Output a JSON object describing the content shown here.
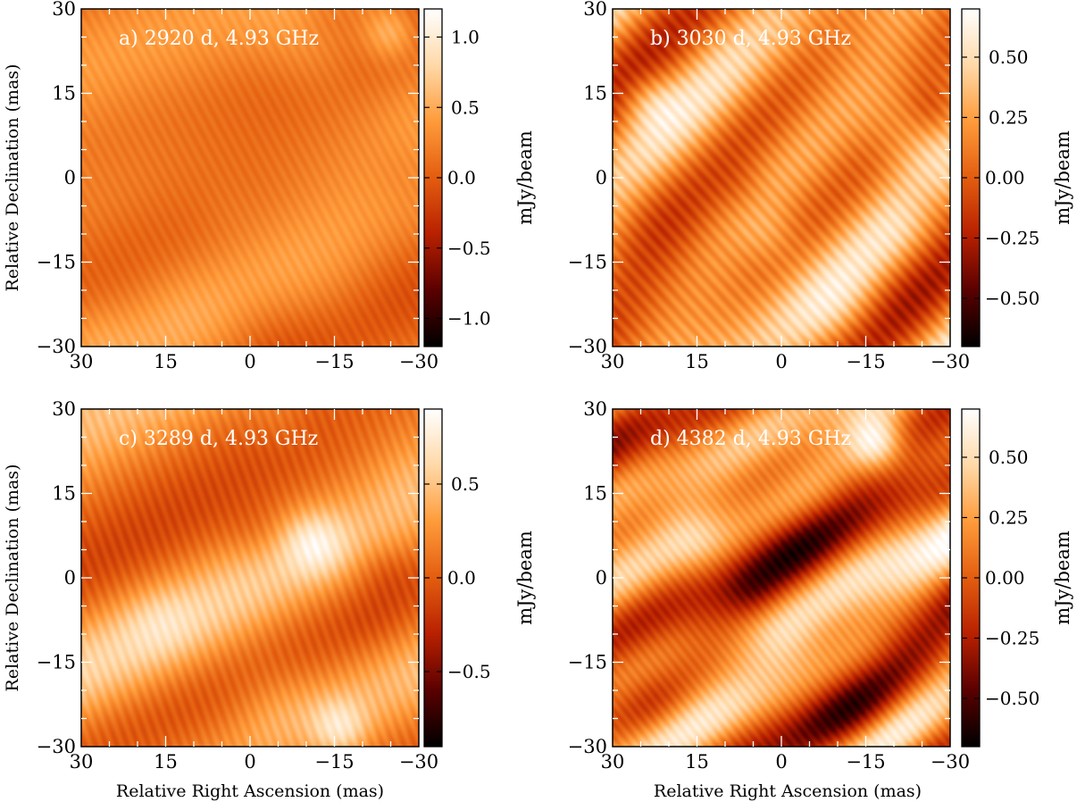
{
  "figure": {
    "xlabel": "Relative Right Ascension (mas)",
    "ylabel": "Relative Declination (mas)",
    "colorbar_label": "mJy/beam"
  },
  "colormap": {
    "name": "afmhot",
    "stops": [
      "#000000",
      "#5a0000",
      "#b82000",
      "#e35d0f",
      "#ff9b3a",
      "#ffd9a8",
      "#ffffff"
    ]
  },
  "chart_data": [
    {
      "type": "heatmap",
      "title": "a) 2920 d, 4.93 GHz",
      "xlabel": "",
      "ylabel": "Relative Declination (mas)",
      "xlim": [
        30,
        -30
      ],
      "ylim": [
        -30,
        30
      ],
      "xticks": [
        30,
        15,
        0,
        -15,
        -30
      ],
      "xtick_labels": [
        "30",
        "15",
        "0",
        "−15",
        "−30"
      ],
      "yticks": [
        30,
        15,
        0,
        -15,
        -30
      ],
      "ytick_labels": [
        "30",
        "15",
        "0",
        "−15",
        "−30"
      ],
      "colorbar": {
        "label": "mJy/beam",
        "range": [
          -1.2,
          1.2
        ],
        "ticks": [
          1.0,
          0.5,
          0.0,
          -0.5,
          -1.0
        ],
        "tick_labels": [
          "1.0",
          "0.5",
          "0.0",
          "−0.5",
          "−1.0"
        ]
      },
      "noise": {
        "seed": 11,
        "angle": 62,
        "freq": 0.18,
        "amp": 0.22,
        "mean": 0.22,
        "fringe": 1.15,
        "fringe_amp": 0.06,
        "hot": {
          "ra": -25,
          "dec": 26,
          "value": 0.55
        }
      }
    },
    {
      "type": "heatmap",
      "title": "b) 3030 d, 4.93 GHz",
      "xlabel": "",
      "ylabel": "",
      "xlim": [
        30,
        -30
      ],
      "ylim": [
        -30,
        30
      ],
      "xticks": [
        30,
        15,
        0,
        -15,
        -30
      ],
      "xtick_labels": [
        "30",
        "15",
        "0",
        "−15",
        "−30"
      ],
      "yticks": [
        30,
        15,
        0,
        -15,
        -30
      ],
      "ytick_labels": [
        "30",
        "15",
        "0",
        "−15",
        "−30"
      ],
      "colorbar": {
        "label": "mJy/beam",
        "range": [
          -0.7,
          0.7
        ],
        "ticks": [
          0.5,
          0.25,
          0.0,
          -0.25,
          -0.5
        ],
        "tick_labels": [
          "0.50",
          "0.25",
          "0.00",
          "−0.25",
          "−0.50"
        ]
      },
      "noise": {
        "seed": 23,
        "angle": 48,
        "freq": 0.22,
        "amp": 0.28,
        "mean": 0.18,
        "fringe": 1.0,
        "fringe_amp": 0.07,
        "hot": {
          "ra": 24,
          "dec": 14,
          "value": 0.25
        }
      }
    },
    {
      "type": "heatmap",
      "title": "c) 3289 d, 4.93 GHz",
      "xlabel": "",
      "ylabel": "Relative Declination (mas)",
      "xlim": [
        30,
        -30
      ],
      "ylim": [
        -30,
        30
      ],
      "xticks": [
        30,
        15,
        0,
        -15,
        -30
      ],
      "xtick_labels": [
        "30",
        "15",
        "0",
        "−15",
        "−30"
      ],
      "yticks": [
        30,
        15,
        0,
        -15,
        -30
      ],
      "ytick_labels": [
        "30",
        "15",
        "0",
        "−15",
        "−30"
      ],
      "colorbar": {
        "label": "mJy/beam",
        "range": [
          -0.9,
          0.9
        ],
        "ticks": [
          0.5,
          0.0,
          -0.5
        ],
        "tick_labels": [
          "0.5",
          "0.0",
          "−0.5"
        ]
      },
      "noise": {
        "seed": 37,
        "angle": 70,
        "freq": 0.2,
        "amp": 0.24,
        "mean": 0.2,
        "fringe": 1.1,
        "fringe_amp": 0.06,
        "hot": {
          "ra": -16,
          "dec": -27,
          "value": 0.4
        }
      }
    },
    {
      "type": "heatmap",
      "title": "d) 4382 d, 4.93 GHz",
      "xlabel": "Relative Right Ascension (mas)",
      "ylabel": "",
      "xlim": [
        30,
        -30
      ],
      "ylim": [
        -30,
        30
      ],
      "xticks": [
        30,
        15,
        0,
        -15,
        -30
      ],
      "xtick_labels": [
        "30",
        "15",
        "0",
        "−15",
        "−30"
      ],
      "yticks": [
        30,
        15,
        0,
        -15,
        -30
      ],
      "ytick_labels": [
        "30",
        "15",
        "0",
        "−15",
        "−30"
      ],
      "colorbar": {
        "label": "mJy/beam",
        "range": [
          -0.7,
          0.7
        ],
        "ticks": [
          0.5,
          0.25,
          0.0,
          -0.25,
          -0.5
        ],
        "tick_labels": [
          "0.50",
          "0.25",
          "0.00",
          "−0.25",
          "−0.50"
        ]
      },
      "noise": {
        "seed": 51,
        "angle": 52,
        "freq": 0.32,
        "amp": 0.38,
        "mean": 0.12,
        "fringe": 1.3,
        "fringe_amp": 0.05,
        "hot": {
          "ra": -17,
          "dec": 24,
          "value": 0.55
        }
      }
    }
  ]
}
